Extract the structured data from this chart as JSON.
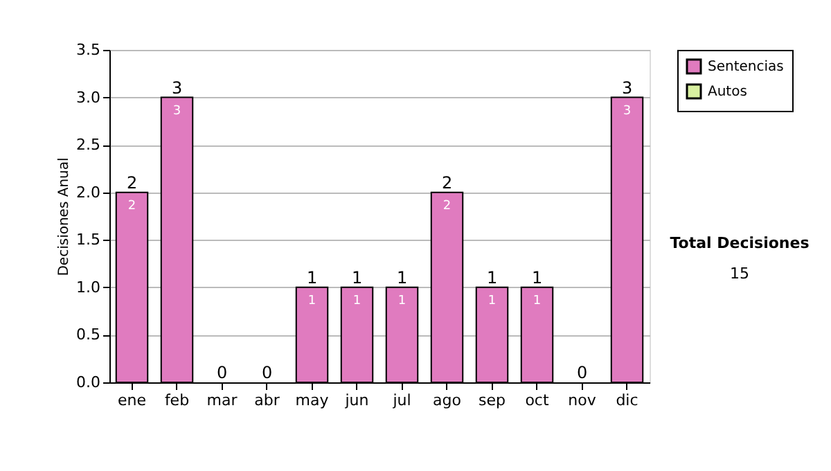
{
  "chart_data": {
    "type": "bar",
    "stacked": true,
    "ylabel": "Decisiones Anual",
    "categories": [
      "ene",
      "feb",
      "mar",
      "abr",
      "may",
      "jun",
      "jul",
      "ago",
      "sep",
      "oct",
      "nov",
      "dic"
    ],
    "series": [
      {
        "name": "Sentencias",
        "color": "#e07bbf",
        "values": [
          2,
          3,
          0,
          0,
          1,
          1,
          1,
          2,
          1,
          1,
          0,
          3
        ],
        "value_labels": [
          "2",
          "3",
          null,
          null,
          "1",
          "1",
          "1",
          "2",
          "1",
          "1",
          null,
          "3"
        ]
      },
      {
        "name": "Autos",
        "color": "#d8f0a0",
        "values": [
          0,
          0,
          0,
          0,
          0,
          0,
          0,
          0,
          0,
          0,
          0,
          0
        ]
      }
    ],
    "totals": [
      "2",
      "3",
      "0",
      "0",
      "1",
      "1",
      "1",
      "2",
      "1",
      "1",
      "0",
      "3"
    ],
    "ylim": [
      0,
      3.5
    ],
    "yticks": [
      {
        "value": 0,
        "label": "0.0"
      },
      {
        "value": 0.5,
        "label": "0.5"
      },
      {
        "value": 1,
        "label": "1.0"
      },
      {
        "value": 1.5,
        "label": "1.5"
      },
      {
        "value": 2,
        "label": "2.0"
      },
      {
        "value": 2.5,
        "label": "2.5"
      },
      {
        "value": 3,
        "label": "3.0"
      },
      {
        "value": 3.5,
        "label": "3.5"
      }
    ],
    "grid": "y",
    "legend": "right",
    "annotations": [
      "Total Decisiones",
      "15"
    ]
  }
}
